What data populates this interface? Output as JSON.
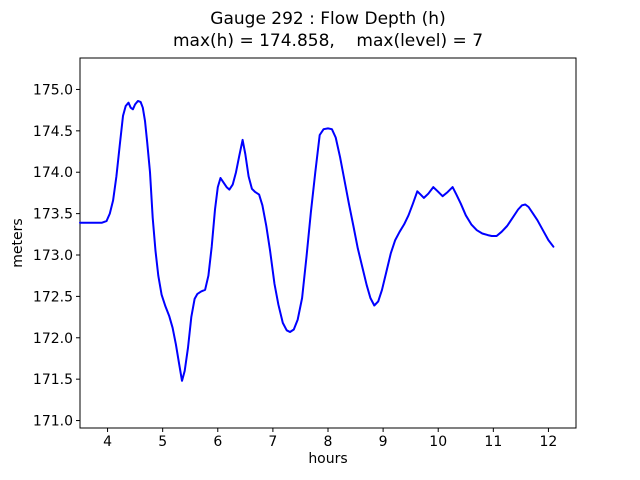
{
  "figure": {
    "title": "Gauge 292 : Flow Depth (h)",
    "subtitle": "max(h) = 174.858,    max(level) = 7",
    "xlabel": "hours",
    "ylabel": "meters"
  },
  "chart_data": {
    "type": "line",
    "title": "Gauge 292 : Flow Depth (h)",
    "subtitle": "max(h) = 174.858,    max(level) = 7",
    "max_h": 174.858,
    "max_level": 7,
    "xlabel": "hours",
    "ylabel": "meters",
    "xlim": [
      3.5,
      12.5
    ],
    "ylim": [
      170.91,
      175.38
    ],
    "xticks": [
      4,
      5,
      6,
      7,
      8,
      9,
      10,
      11,
      12
    ],
    "yticks": [
      "171.0",
      "171.5",
      "172.0",
      "172.5",
      "173.0",
      "173.5",
      "174.0",
      "174.5",
      "175.0"
    ],
    "grid": false,
    "legend": "none",
    "background_color": "#ffffff",
    "axes_color": "#000000",
    "series": [
      {
        "name": "h",
        "color": "#0000ff",
        "line_width": 2,
        "points": [
          [
            3.5,
            173.39
          ],
          [
            3.6,
            173.39
          ],
          [
            3.7,
            173.39
          ],
          [
            3.8,
            173.39
          ],
          [
            3.9,
            173.39
          ],
          [
            3.98,
            173.41
          ],
          [
            4.04,
            173.5
          ],
          [
            4.1,
            173.66
          ],
          [
            4.16,
            173.95
          ],
          [
            4.22,
            174.32
          ],
          [
            4.28,
            174.68
          ],
          [
            4.33,
            174.8
          ],
          [
            4.38,
            174.84
          ],
          [
            4.42,
            174.78
          ],
          [
            4.46,
            174.76
          ],
          [
            4.5,
            174.82
          ],
          [
            4.55,
            174.86
          ],
          [
            4.6,
            174.85
          ],
          [
            4.64,
            174.78
          ],
          [
            4.68,
            174.62
          ],
          [
            4.72,
            174.36
          ],
          [
            4.77,
            174.0
          ],
          [
            4.82,
            173.45
          ],
          [
            4.87,
            173.05
          ],
          [
            4.92,
            172.75
          ],
          [
            4.98,
            172.52
          ],
          [
            5.05,
            172.38
          ],
          [
            5.12,
            172.26
          ],
          [
            5.18,
            172.12
          ],
          [
            5.24,
            171.92
          ],
          [
            5.3,
            171.68
          ],
          [
            5.35,
            171.48
          ],
          [
            5.4,
            171.6
          ],
          [
            5.46,
            171.88
          ],
          [
            5.52,
            172.25
          ],
          [
            5.58,
            172.47
          ],
          [
            5.63,
            172.53
          ],
          [
            5.7,
            172.56
          ],
          [
            5.77,
            172.58
          ],
          [
            5.83,
            172.75
          ],
          [
            5.89,
            173.1
          ],
          [
            5.95,
            173.55
          ],
          [
            6.0,
            173.82
          ],
          [
            6.05,
            173.93
          ],
          [
            6.1,
            173.88
          ],
          [
            6.16,
            173.82
          ],
          [
            6.21,
            173.79
          ],
          [
            6.27,
            173.85
          ],
          [
            6.33,
            174.0
          ],
          [
            6.39,
            174.2
          ],
          [
            6.45,
            174.39
          ],
          [
            6.5,
            174.22
          ],
          [
            6.56,
            173.95
          ],
          [
            6.62,
            173.8
          ],
          [
            6.68,
            173.76
          ],
          [
            6.75,
            173.73
          ],
          [
            6.81,
            173.6
          ],
          [
            6.88,
            173.35
          ],
          [
            6.95,
            173.05
          ],
          [
            7.03,
            172.65
          ],
          [
            7.1,
            172.4
          ],
          [
            7.18,
            172.18
          ],
          [
            7.25,
            172.09
          ],
          [
            7.31,
            172.07
          ],
          [
            7.38,
            172.1
          ],
          [
            7.45,
            172.22
          ],
          [
            7.53,
            172.48
          ],
          [
            7.61,
            172.98
          ],
          [
            7.69,
            173.52
          ],
          [
            7.77,
            174.0
          ],
          [
            7.85,
            174.45
          ],
          [
            7.92,
            174.52
          ],
          [
            8.0,
            174.53
          ],
          [
            8.07,
            174.52
          ],
          [
            8.14,
            174.42
          ],
          [
            8.22,
            174.18
          ],
          [
            8.3,
            173.9
          ],
          [
            8.38,
            173.62
          ],
          [
            8.46,
            173.35
          ],
          [
            8.54,
            173.08
          ],
          [
            8.62,
            172.86
          ],
          [
            8.7,
            172.64
          ],
          [
            8.77,
            172.48
          ],
          [
            8.84,
            172.39
          ],
          [
            8.91,
            172.44
          ],
          [
            8.98,
            172.58
          ],
          [
            9.06,
            172.8
          ],
          [
            9.14,
            173.02
          ],
          [
            9.22,
            173.18
          ],
          [
            9.3,
            173.28
          ],
          [
            9.38,
            173.37
          ],
          [
            9.46,
            173.48
          ],
          [
            9.54,
            173.62
          ],
          [
            9.62,
            173.77
          ],
          [
            9.68,
            173.73
          ],
          [
            9.74,
            173.69
          ],
          [
            9.82,
            173.74
          ],
          [
            9.91,
            173.82
          ],
          [
            9.99,
            173.77
          ],
          [
            10.08,
            173.71
          ],
          [
            10.17,
            173.76
          ],
          [
            10.26,
            173.82
          ],
          [
            10.33,
            173.73
          ],
          [
            10.41,
            173.62
          ],
          [
            10.5,
            173.48
          ],
          [
            10.6,
            173.37
          ],
          [
            10.7,
            173.3
          ],
          [
            10.8,
            173.26
          ],
          [
            10.9,
            173.24
          ],
          [
            10.97,
            173.23
          ],
          [
            11.06,
            173.23
          ],
          [
            11.15,
            173.28
          ],
          [
            11.25,
            173.35
          ],
          [
            11.35,
            173.45
          ],
          [
            11.45,
            173.55
          ],
          [
            11.52,
            173.6
          ],
          [
            11.58,
            173.61
          ],
          [
            11.64,
            173.58
          ],
          [
            11.72,
            173.5
          ],
          [
            11.8,
            173.42
          ],
          [
            11.9,
            173.3
          ],
          [
            12.0,
            173.18
          ],
          [
            12.09,
            173.1
          ]
        ]
      }
    ]
  }
}
